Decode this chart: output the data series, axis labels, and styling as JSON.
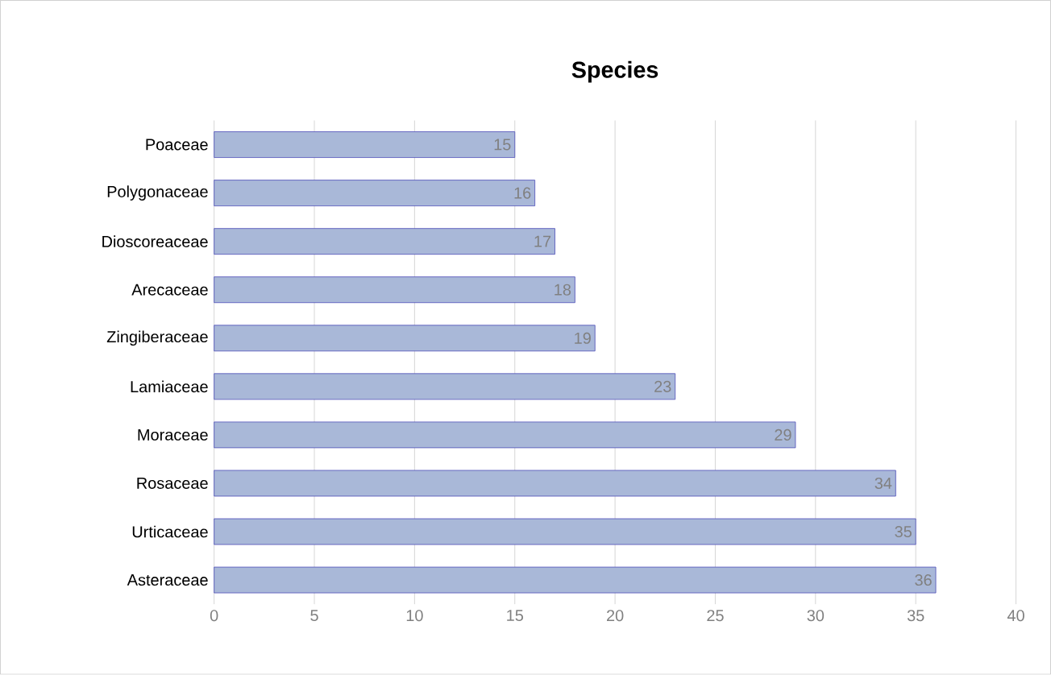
{
  "chart_data": {
    "type": "bar",
    "orientation": "horizontal",
    "title": "Species",
    "categories": [
      "Poaceae",
      "Polygonaceae",
      "Dioscoreaceae",
      "Arecaceae",
      "Zingiberaceae",
      "Lamiaceae",
      "Moraceae",
      "Rosaceae",
      "Urticaceae",
      "Asteraceae"
    ],
    "values": [
      15,
      16,
      17,
      18,
      19,
      23,
      29,
      34,
      35,
      36
    ],
    "color": "#a9b8d8",
    "xlim": [
      0,
      40
    ],
    "xticks": [
      0,
      5,
      10,
      15,
      20,
      25,
      30,
      35,
      40
    ],
    "grid": "x",
    "data_labels": true
  }
}
